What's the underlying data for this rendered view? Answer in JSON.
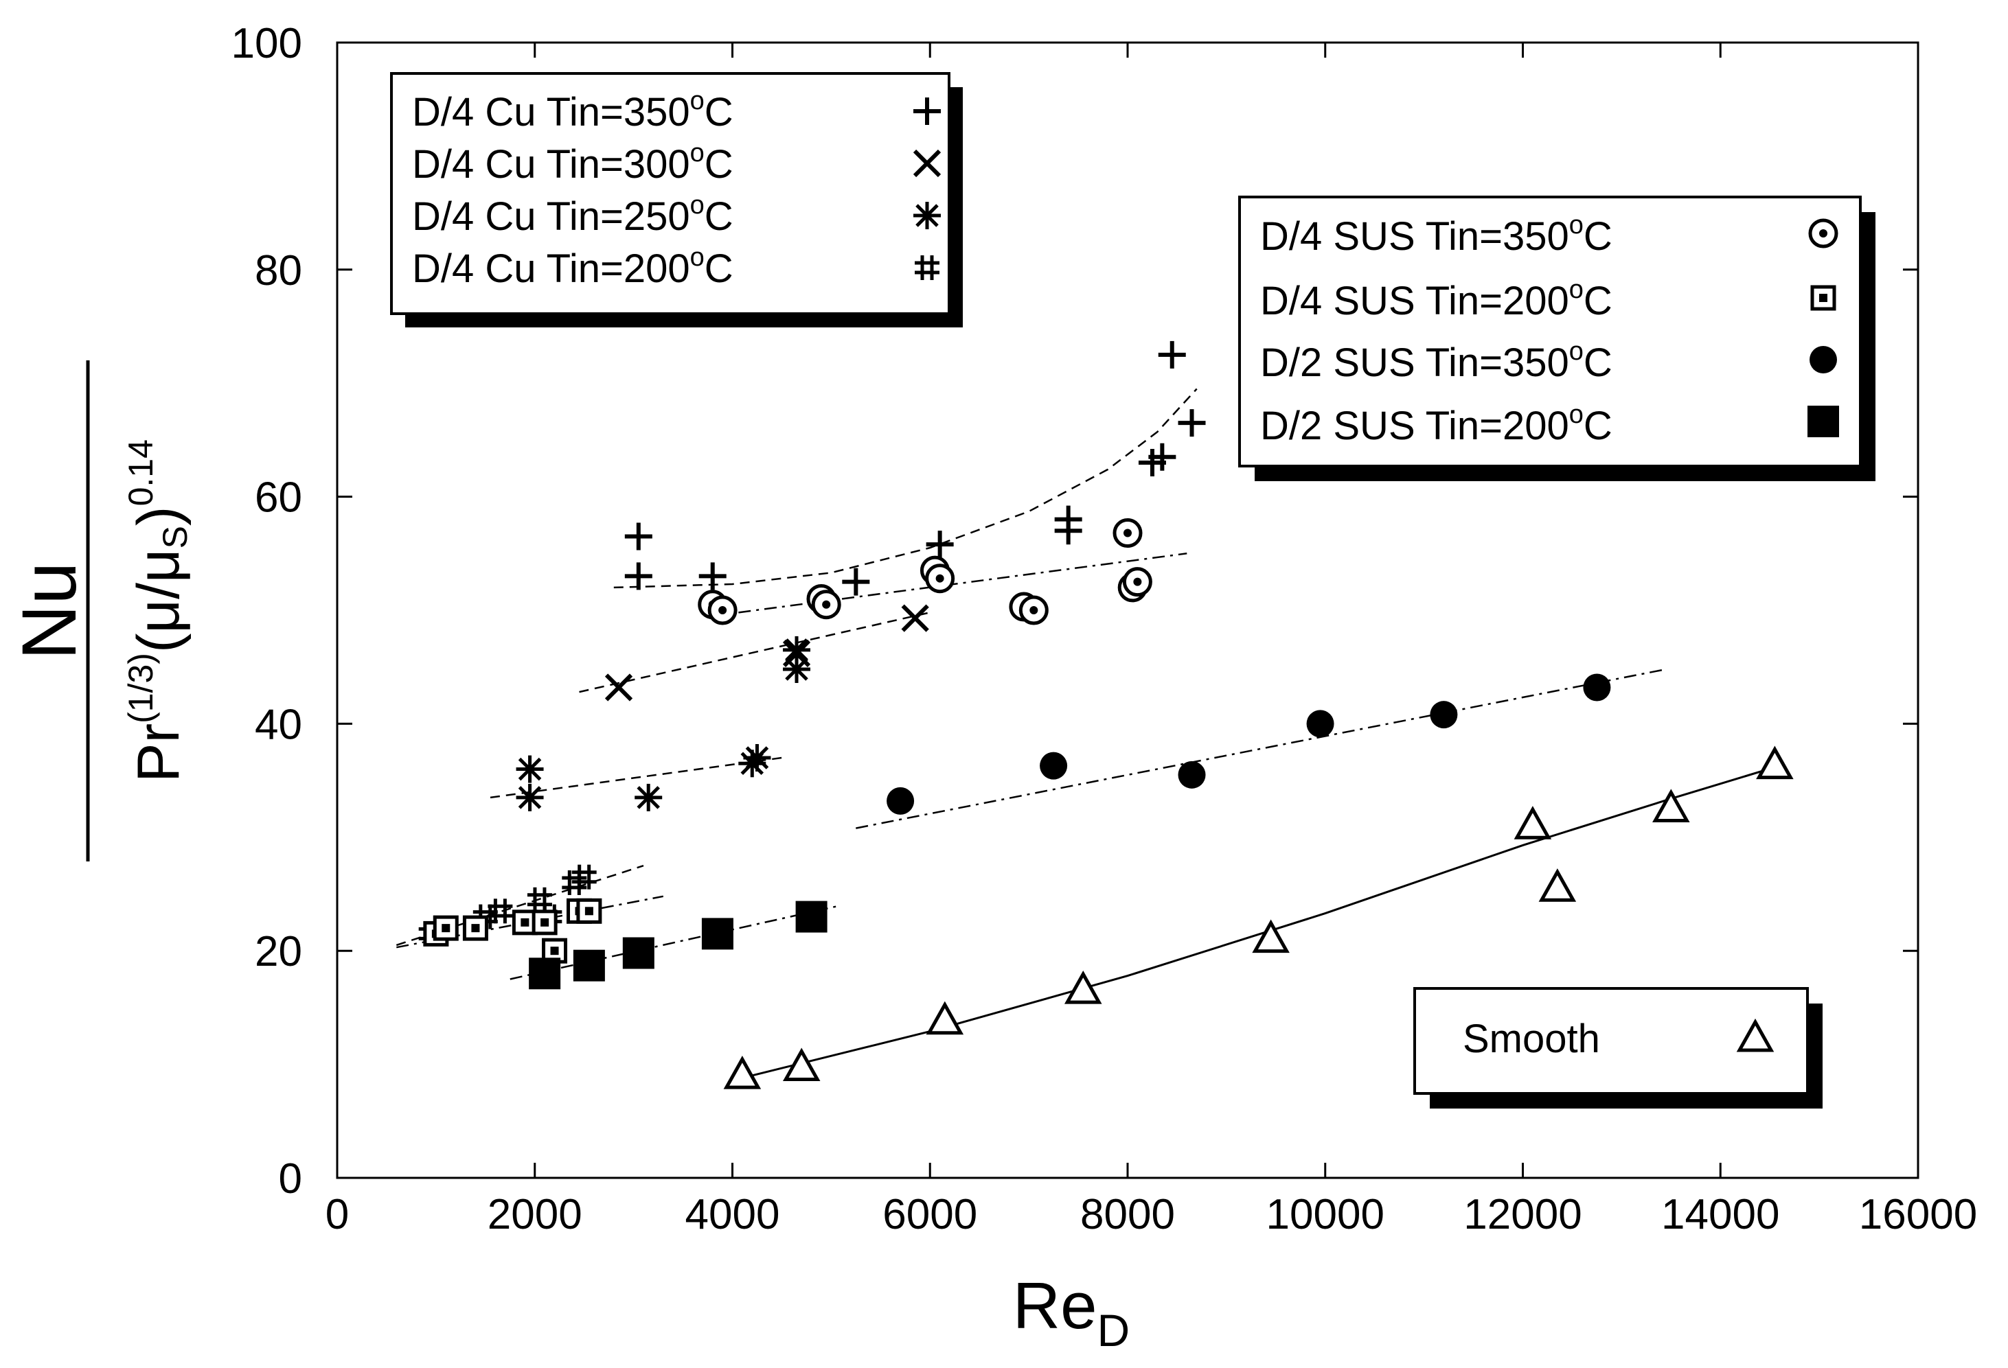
{
  "colors": {
    "fg": "#000000",
    "bg": "#ffffff",
    "shadow": "#000000"
  },
  "chart_data": {
    "type": "scatter",
    "title": "",
    "xlabel": {
      "main": "Re",
      "sub": "D"
    },
    "ylabel": {
      "numerator": "Nu",
      "den_pr": "Pr",
      "den_pr_exp": "(1/3)",
      "den_open": "(",
      "den_mu": "μ",
      "den_slash": "/",
      "den_mus": "μ",
      "den_s": "S",
      "den_close": ")",
      "den_exp": "0.14"
    },
    "xlim": [
      0,
      16000
    ],
    "ylim": [
      0,
      100
    ],
    "xticks": [
      0,
      2000,
      4000,
      6000,
      8000,
      10000,
      12000,
      14000,
      16000
    ],
    "yticks": [
      0,
      20,
      40,
      60,
      80,
      100
    ],
    "legends": [
      {
        "location": "top-left",
        "entries": [
          {
            "deg": "o",
            "unit": "C",
            "label": "D/4 Cu Tin=350",
            "marker": "plus"
          },
          {
            "deg": "o",
            "unit": "C",
            "label": "D/4 Cu Tin=300",
            "marker": "cross"
          },
          {
            "deg": "o",
            "unit": "C",
            "label": "D/4 Cu Tin=250",
            "marker": "asterisk"
          },
          {
            "deg": "o",
            "unit": "C",
            "label": "D/4 Cu Tin=200",
            "marker": "hash"
          }
        ]
      },
      {
        "location": "upper-right",
        "entries": [
          {
            "deg": "o",
            "unit": "C",
            "label": "D/4 SUS Tin=350",
            "marker": "circle-dot"
          },
          {
            "deg": "o",
            "unit": "C",
            "label": "D/4 SUS Tin=200",
            "marker": "square-dot"
          },
          {
            "deg": "o",
            "unit": "C",
            "label": "D/2 SUS Tin=350",
            "marker": "filled-circle"
          },
          {
            "deg": "o",
            "unit": "C",
            "label": "D/2 SUS Tin=200",
            "marker": "filled-square"
          }
        ]
      },
      {
        "location": "lower-right",
        "entries": [
          {
            "label": "Smooth",
            "marker": "open-triangle"
          }
        ]
      }
    ],
    "series": [
      {
        "name": "D/4 Cu Tin=350°C",
        "marker": "plus",
        "x": [
          3050,
          3050,
          3800,
          5250,
          6100,
          7400,
          7400,
          8250,
          8350,
          8450,
          8650
        ],
        "y": [
          53,
          56.5,
          53,
          52.5,
          55.8,
          57,
          58,
          63,
          63.5,
          72.5,
          66.5
        ]
      },
      {
        "name": "D/4 Cu Tin=300°C",
        "marker": "cross",
        "x": [
          2850,
          4650,
          5850
        ],
        "y": [
          43.2,
          46.2,
          49.3
        ]
      },
      {
        "name": "D/4 Cu Tin=250°C",
        "marker": "asterisk",
        "x": [
          1950,
          1950,
          3150,
          4200,
          4250,
          4650,
          4650
        ],
        "y": [
          33.5,
          36,
          33.5,
          36.5,
          37,
          44.8,
          46.5
        ]
      },
      {
        "name": "D/4 Cu Tin=200°C",
        "marker": "hash",
        "x": [
          950,
          1100,
          1500,
          1650,
          2050,
          2150,
          2400,
          2500
        ],
        "y": [
          21.5,
          22,
          23,
          23.5,
          24.5,
          23,
          26,
          26.5
        ]
      },
      {
        "name": "D/4 SUS Tin=350°C",
        "marker": "circle-dot",
        "x": [
          3800,
          3900,
          4900,
          4950,
          6050,
          6100,
          6950,
          7050,
          8000,
          8050,
          8100
        ],
        "y": [
          50.5,
          50,
          51,
          50.5,
          53.5,
          52.8,
          50.3,
          50,
          56.8,
          52,
          52.5
        ]
      },
      {
        "name": "D/4 SUS Tin=200°C",
        "marker": "square-dot",
        "x": [
          1000,
          1100,
          1400,
          1900,
          2100,
          2200,
          2450,
          2550
        ],
        "y": [
          21.5,
          22,
          22,
          22.5,
          22.5,
          20,
          23.5,
          23.5
        ]
      },
      {
        "name": "D/2 SUS Tin=350°C",
        "marker": "filled-circle",
        "x": [
          5700,
          7250,
          8650,
          9950,
          11200,
          12750
        ],
        "y": [
          33.2,
          36.3,
          35.5,
          40,
          40.8,
          43.2
        ]
      },
      {
        "name": "D/2 SUS Tin=200°C",
        "marker": "filled-square",
        "x": [
          2100,
          2550,
          3050,
          3850,
          4800
        ],
        "y": [
          18,
          18.7,
          19.8,
          21.5,
          23
        ]
      },
      {
        "name": "Smooth",
        "marker": "open-triangle",
        "x": [
          4100,
          4700,
          6150,
          7550,
          9450,
          12100,
          12350,
          13500,
          14550
        ],
        "y": [
          9,
          9.7,
          13.8,
          16.5,
          21,
          31,
          25.5,
          32.5,
          36.3
        ]
      }
    ],
    "fit_lines": [
      {
        "style": "dashed",
        "x": [
          2800,
          4000,
          5000,
          6000,
          7000,
          7800,
          8300,
          8700
        ],
        "y": [
          52,
          52.3,
          53.3,
          55.5,
          58.7,
          62.4,
          65.7,
          69.5
        ]
      },
      {
        "style": "dash-dot",
        "x": [
          3800,
          8600
        ],
        "y": [
          49.5,
          55
        ]
      },
      {
        "style": "dashed",
        "x": [
          2450,
          6000
        ],
        "y": [
          42.8,
          49.8
        ]
      },
      {
        "style": "dashed",
        "x": [
          1550,
          4500
        ],
        "y": [
          33.5,
          37
        ]
      },
      {
        "style": "dashed",
        "x": [
          600,
          3100
        ],
        "y": [
          20.5,
          27.5
        ]
      },
      {
        "style": "dash-dot",
        "x": [
          600,
          3300
        ],
        "y": [
          20.3,
          24.8
        ]
      },
      {
        "style": "dash-dot",
        "x": [
          1750,
          5100
        ],
        "y": [
          17.5,
          24
        ]
      },
      {
        "style": "dash-dot",
        "x": [
          5250,
          13450
        ],
        "y": [
          30.8,
          44.8
        ]
      },
      {
        "style": "solid",
        "x": [
          4100,
          6000,
          8000,
          10000,
          12000,
          13500,
          14600
        ],
        "y": [
          8.8,
          12.9,
          17.8,
          23.3,
          29.3,
          33.4,
          36.3
        ]
      }
    ]
  }
}
